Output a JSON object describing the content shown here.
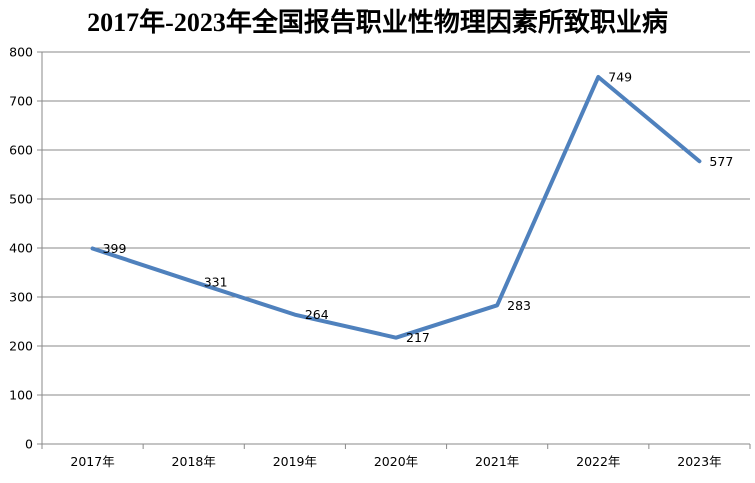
{
  "chart_data": {
    "type": "line",
    "title": "2017年-2023年全国报告职业性物理因素所致职业病",
    "categories": [
      "2017年",
      "2018年",
      "2019年",
      "2020年",
      "2021年",
      "2022年",
      "2023年"
    ],
    "values": [
      399,
      331,
      264,
      217,
      283,
      749,
      577
    ],
    "data_labels": [
      "399",
      "331",
      "264",
      "217",
      "283",
      "749",
      "577"
    ],
    "xlabel": "",
    "ylabel": "",
    "ylim": [
      0,
      800
    ],
    "ytick_interval": 100,
    "ytick_labels": [
      "0",
      "100",
      "200",
      "300",
      "400",
      "500",
      "600",
      "700",
      "800"
    ],
    "grid": "horizontal",
    "legend": "none",
    "colors": {
      "line": "#4F81BD",
      "grid": "#8A8A8A",
      "axis": "#8A8A8A",
      "text": "#000000",
      "background": "#FFFFFF"
    }
  }
}
